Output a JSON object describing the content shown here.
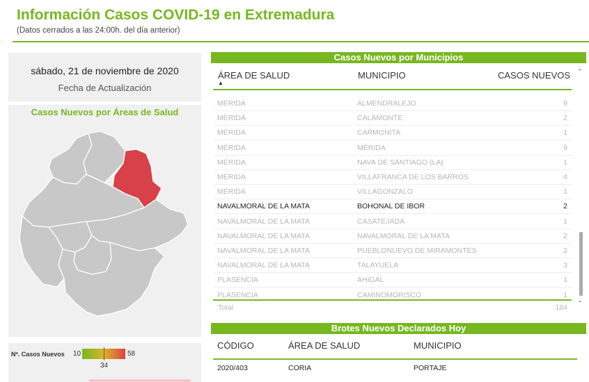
{
  "header": {
    "title": "Información Casos COVID-19 en Extremadura",
    "subtitle": "(Datos cerrados a las 24:00h. del día anterior)"
  },
  "update_card": {
    "date": "sábado, 21 de noviembre de 2020",
    "label": "Fecha de Actualización"
  },
  "map": {
    "title": "Casos Nuevos por Áreas de Salud",
    "base_color": "#c8c8c8",
    "highlight_color": "#d8404a"
  },
  "legend": {
    "label": "Nº. Casos Nuevos",
    "min": "10",
    "mid": "34",
    "max": "58"
  },
  "municipios": {
    "title": "Casos Nuevos por Municipios",
    "columns": [
      "ÁREA DE SALUD",
      "MUNICIPIO",
      "CASOS NUEVOS"
    ],
    "rows": [
      {
        "area": "Mérida",
        "municipio": "Almendralejo",
        "casos": "9",
        "active": false
      },
      {
        "area": "Mérida",
        "municipio": "Calamonte",
        "casos": "2",
        "active": false
      },
      {
        "area": "Mérida",
        "municipio": "Carmonita",
        "casos": "1",
        "active": false
      },
      {
        "area": "Mérida",
        "municipio": "Mérida",
        "casos": "9",
        "active": false
      },
      {
        "area": "Mérida",
        "municipio": "Nava de Santiago (La)",
        "casos": "1",
        "active": false
      },
      {
        "area": "Mérida",
        "municipio": "Villafranca de los Barros",
        "casos": "4",
        "active": false
      },
      {
        "area": "Mérida",
        "municipio": "Villagonzalo",
        "casos": "1",
        "active": false
      },
      {
        "area": "Navalmoral de la Mata",
        "municipio": "Bohonal de Ibor",
        "casos": "2",
        "active": true
      },
      {
        "area": "Navalmoral de la Mata",
        "municipio": "Casatejada",
        "casos": "1",
        "active": false
      },
      {
        "area": "Navalmoral de la Mata",
        "municipio": "Navalmoral de la Mata",
        "casos": "2",
        "active": false
      },
      {
        "area": "Navalmoral de la Mata",
        "municipio": "Pueblonuevo de Miramontes",
        "casos": "2",
        "active": false
      },
      {
        "area": "Navalmoral de la Mata",
        "municipio": "Talayuela",
        "casos": "3",
        "active": false
      },
      {
        "area": "Plasencia",
        "municipio": "Ahigal",
        "casos": "1",
        "active": false
      },
      {
        "area": "Plasencia",
        "municipio": "Caminomorisco",
        "casos": "1",
        "active": false
      }
    ],
    "total_label": "Total",
    "total_value": "184"
  },
  "brotes": {
    "title": "Brotes Nuevos Declarados Hoy",
    "columns": [
      "CÓDIGO",
      "ÁREA DE SALUD",
      "MUNICIPIO"
    ],
    "rows": [
      {
        "codigo": "2020/403",
        "area": "CORIA",
        "municipio": "PORTAJE"
      }
    ]
  }
}
